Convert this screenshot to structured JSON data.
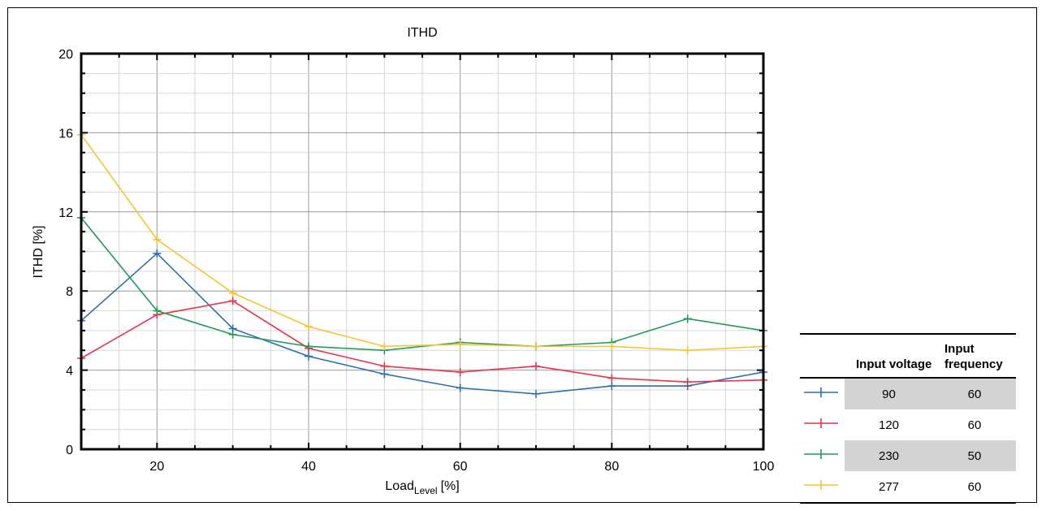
{
  "chart_data": {
    "type": "line",
    "title": "ITHD",
    "xlabel": "Load",
    "xlabel_sub": "Level",
    "xlabel_unit": "[%]",
    "ylabel": "ITHD [%]",
    "xlim": [
      10,
      100
    ],
    "ylim": [
      0,
      20
    ],
    "xticks": [
      20,
      40,
      60,
      80,
      100
    ],
    "yticks": [
      0,
      4,
      8,
      12,
      16,
      20
    ],
    "grid": true,
    "x": [
      10,
      20,
      30,
      40,
      50,
      60,
      70,
      80,
      90,
      100
    ],
    "series": [
      {
        "name": "90 / 60",
        "color": "#2f6fb0",
        "values": [
          6.5,
          9.9,
          6.1,
          4.7,
          3.8,
          3.1,
          2.8,
          3.2,
          3.2,
          3.9
        ]
      },
      {
        "name": "120 / 60",
        "color": "#e8334a",
        "values": [
          4.6,
          6.8,
          7.5,
          5.1,
          4.2,
          3.9,
          4.2,
          3.6,
          3.4,
          3.5
        ]
      },
      {
        "name": "230 / 50",
        "color": "#1f9a5a",
        "values": [
          11.7,
          7.0,
          5.8,
          5.2,
          5.0,
          5.4,
          5.2,
          5.4,
          6.6,
          6.0
        ]
      },
      {
        "name": "277 / 60",
        "color": "#f5c431",
        "values": [
          15.9,
          10.6,
          7.9,
          6.2,
          5.2,
          5.3,
          5.2,
          5.2,
          5.0,
          5.2
        ]
      }
    ]
  },
  "legend_table": {
    "header_voltage": "Input voltage",
    "header_frequency": "Input frequency",
    "rows": [
      {
        "voltage": "90",
        "frequency": "60",
        "color": "#2f6fb0"
      },
      {
        "voltage": "120",
        "frequency": "60",
        "color": "#e8334a"
      },
      {
        "voltage": "230",
        "frequency": "50",
        "color": "#1f9a5a"
      },
      {
        "voltage": "277",
        "frequency": "60",
        "color": "#f5c431"
      }
    ]
  }
}
